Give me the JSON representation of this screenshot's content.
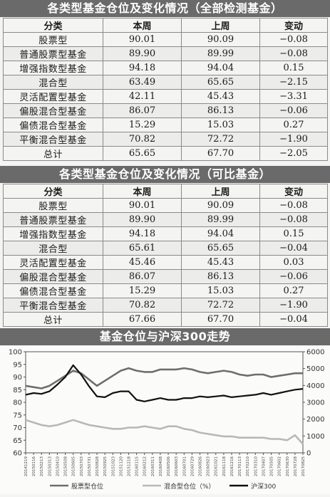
{
  "table1": {
    "title": "各类型基金仓位及变化情况（全部检测基金）",
    "headers": [
      "分类",
      "本周",
      "上周",
      "变动"
    ],
    "rows": [
      [
        "股票型",
        "90.01",
        "90.09",
        "−0.08"
      ],
      [
        "普通股票型基金",
        "89.90",
        "89.99",
        "−0.08"
      ],
      [
        "增强指数型基金",
        "94.18",
        "94.04",
        "0.15"
      ],
      [
        "混合型",
        "63.49",
        "65.65",
        "−2.15"
      ],
      [
        "灵活配置型基金",
        "42.11",
        "45.43",
        "−3.31"
      ],
      [
        "偏股混合型基金",
        "86.07",
        "86.13",
        "−0.06"
      ],
      [
        "偏债混合型基金",
        "15.29",
        "15.03",
        "0.27"
      ],
      [
        "平衡混合型基金",
        "70.82",
        "72.72",
        "−1.90"
      ],
      [
        "总计",
        "65.65",
        "67.70",
        "−2.05"
      ]
    ]
  },
  "table2": {
    "title": "各类型基金仓位及变化情况（可比基金）",
    "headers": [
      "分类",
      "本周",
      "上周",
      "变动"
    ],
    "rows": [
      [
        "股票型",
        "90.01",
        "90.09",
        "−0.08"
      ],
      [
        "普通股票型基金",
        "89.90",
        "89.99",
        "−0.08"
      ],
      [
        "增强指数型基金",
        "94.18",
        "94.04",
        "0.15"
      ],
      [
        "混合型",
        "65.61",
        "65.65",
        "−0.04"
      ],
      [
        "灵活配置型基金",
        "45.46",
        "45.43",
        "0.03"
      ],
      [
        "偏股混合型基金",
        "86.07",
        "86.13",
        "−0.06"
      ],
      [
        "偏债混合型基金",
        "15.29",
        "15.03",
        "0.27"
      ],
      [
        "平衡混合型基金",
        "70.82",
        "72.72",
        "−1.90"
      ],
      [
        "总计",
        "67.66",
        "67.70",
        "−0.04"
      ]
    ]
  },
  "chart_data": {
    "type": "line",
    "title": "基金仓位与沪深300走势",
    "xlabel": "",
    "ylabel": "",
    "ylim": [
      60,
      100
    ],
    "y2lim": [
      0,
      6000
    ],
    "yticks": [
      60,
      65,
      70,
      75,
      80,
      85,
      90,
      95,
      100
    ],
    "y2ticks": [
      0,
      1000,
      2000,
      3000,
      4000,
      5000,
      6000
    ],
    "grid": false,
    "legend": "bottom",
    "x": [
      "20141219",
      "20150116",
      "20150213",
      "20150313",
      "20150410",
      "20150508",
      "20150605",
      "20150703",
      "20150731",
      "20150828",
      "20150925",
      "20151023",
      "20151120",
      "20151218",
      "20160115",
      "20160212",
      "20160311",
      "20160408",
      "20160506",
      "20160603",
      "20160701",
      "20160729",
      "20160826",
      "20160923",
      "20161021",
      "20161118",
      "20161216",
      "20170113",
      "20170210",
      "20170310",
      "20170407",
      "20170505",
      "20170602",
      "20170630",
      "20170728",
      "20170825"
    ],
    "series": [
      {
        "name": "股票型仓位",
        "axis": "left",
        "color": "#6e6e6e",
        "values": [
          86.5,
          86.0,
          85.5,
          86.5,
          88.5,
          90.5,
          92.5,
          91.5,
          89.0,
          86.5,
          88.5,
          90.5,
          92.5,
          93.5,
          92.5,
          92.0,
          92.0,
          93.0,
          93.0,
          93.0,
          93.5,
          93.0,
          92.0,
          91.5,
          92.0,
          92.5,
          92.0,
          91.0,
          90.5,
          91.0,
          91.0,
          90.0,
          90.5,
          91.0,
          91.5,
          91.5
        ]
      },
      {
        "name": "混合型仓位（%）",
        "axis": "left",
        "color": "#b8b8b8",
        "values": [
          73.0,
          72.0,
          71.0,
          70.5,
          71.0,
          72.0,
          73.0,
          72.0,
          71.0,
          70.5,
          70.0,
          69.5,
          69.5,
          70.0,
          70.0,
          70.5,
          70.0,
          69.5,
          70.5,
          70.5,
          69.5,
          69.0,
          68.0,
          67.5,
          67.0,
          66.5,
          66.5,
          66.0,
          66.0,
          66.0,
          66.0,
          65.5,
          65.5,
          65.0,
          67.0,
          63.5
        ]
      },
      {
        "name": "沪深300",
        "axis": "right",
        "color": "#111111",
        "values": [
          3450,
          3550,
          3500,
          3650,
          4050,
          4500,
          5200,
          4650,
          3950,
          3350,
          3300,
          3550,
          3650,
          3650,
          3150,
          3050,
          3150,
          3250,
          3150,
          3150,
          3250,
          3250,
          3350,
          3300,
          3350,
          3400,
          3300,
          3350,
          3400,
          3450,
          3550,
          3450,
          3550,
          3650,
          3750,
          3800
        ]
      }
    ]
  }
}
